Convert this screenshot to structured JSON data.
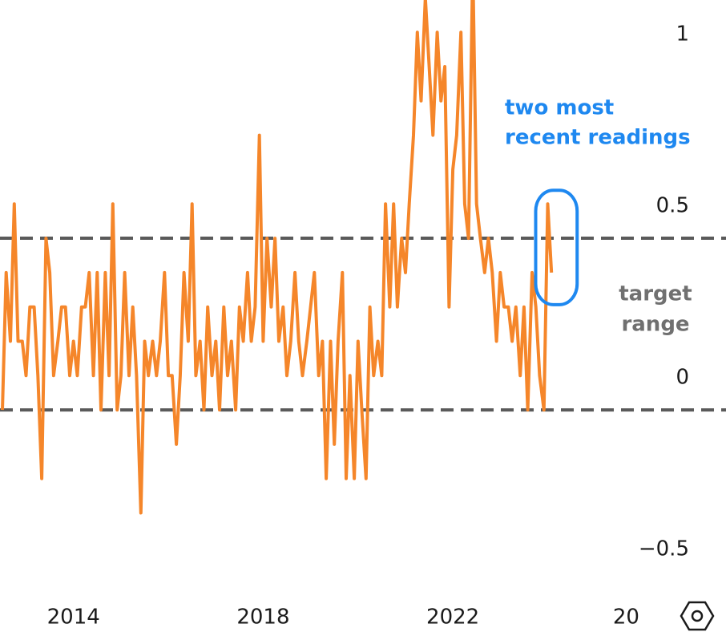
{
  "chart_data": {
    "type": "line",
    "x": [
      2012.5,
      2012.58,
      2012.67,
      2012.75,
      2012.83,
      2012.92,
      2013.0,
      2013.08,
      2013.17,
      2013.25,
      2013.33,
      2013.42,
      2013.5,
      2013.58,
      2013.67,
      2013.75,
      2013.83,
      2013.92,
      2014.0,
      2014.08,
      2014.17,
      2014.25,
      2014.33,
      2014.42,
      2014.5,
      2014.58,
      2014.67,
      2014.75,
      2014.83,
      2014.92,
      2015.0,
      2015.08,
      2015.17,
      2015.25,
      2015.33,
      2015.42,
      2015.5,
      2015.58,
      2015.67,
      2015.75,
      2015.83,
      2015.92,
      2016.0,
      2016.08,
      2016.17,
      2016.25,
      2016.33,
      2016.42,
      2016.5,
      2016.58,
      2016.67,
      2016.75,
      2016.83,
      2016.92,
      2017.0,
      2017.08,
      2017.17,
      2017.25,
      2017.33,
      2017.42,
      2017.5,
      2017.58,
      2017.67,
      2017.75,
      2017.83,
      2017.92,
      2018.0,
      2018.08,
      2018.17,
      2018.25,
      2018.33,
      2018.42,
      2018.5,
      2018.58,
      2018.67,
      2018.75,
      2018.83,
      2018.92,
      2019.0,
      2019.08,
      2019.17,
      2019.25,
      2019.33,
      2019.42,
      2019.5,
      2019.58,
      2019.67,
      2019.75,
      2019.83,
      2019.92,
      2020.0,
      2020.08,
      2020.17,
      2020.25,
      2020.33,
      2020.42,
      2020.5,
      2020.58,
      2020.67,
      2020.75,
      2020.83,
      2020.92,
      2021.0,
      2021.08,
      2021.17,
      2021.25,
      2021.33,
      2021.42,
      2021.5,
      2021.58,
      2021.67,
      2021.75,
      2021.83,
      2021.92,
      2022.0,
      2022.08,
      2022.17,
      2022.25,
      2022.33,
      2022.42,
      2022.5,
      2022.58,
      2022.67,
      2022.75,
      2022.83,
      2022.92,
      2023.0,
      2023.08,
      2023.17,
      2023.25,
      2023.33,
      2023.42,
      2023.5,
      2023.58,
      2023.67,
      2023.75,
      2023.83,
      2023.92,
      2024.0,
      2024.08
    ],
    "series": [
      {
        "color": "#f5862a",
        "values": [
          0,
          0.4,
          0.2,
          0.6,
          0.2,
          0.2,
          0.1,
          0.3,
          0.3,
          0.1,
          -0.2,
          0.5,
          0.4,
          0.1,
          0.2,
          0.3,
          0.3,
          0.1,
          0.2,
          0.1,
          0.3,
          0.3,
          0.4,
          0.1,
          0.4,
          0,
          0.4,
          0.1,
          0.6,
          0,
          0.1,
          0.4,
          0.1,
          0.3,
          0.1,
          -0.3,
          0.2,
          0.1,
          0.2,
          0.1,
          0.2,
          0.4,
          0.1,
          0.1,
          -0.1,
          0.1,
          0.4,
          0.2,
          0.6,
          0.1,
          0.2,
          0,
          0.3,
          0.1,
          0.2,
          0,
          0.3,
          0.1,
          0.2,
          0,
          0.3,
          0.2,
          0.4,
          0.2,
          0.3,
          0.8,
          0.2,
          0.5,
          0.3,
          0.5,
          0.2,
          0.3,
          0.1,
          0.2,
          0.4,
          0.2,
          0.1,
          0.2,
          0.3,
          0.4,
          0.1,
          0.2,
          -0.2,
          0.2,
          -0.1,
          0.2,
          0.4,
          -0.2,
          0.1,
          -0.2,
          0.2,
          0,
          -0.2,
          0.3,
          0.1,
          0.2,
          0.1,
          0.6,
          0.3,
          0.6,
          0.3,
          0.5,
          0.4,
          0.6,
          0.8,
          1.1,
          0.9,
          1.2,
          1.0,
          0.8,
          1.1,
          0.9,
          1.0,
          0.3,
          0.7,
          0.8,
          1.1,
          0.6,
          0.5,
          1.3,
          0.6,
          0.5,
          0.4,
          0.5,
          0.4,
          0.2,
          0.4,
          0.3,
          0.3,
          0.2,
          0.3,
          0.1,
          0.3,
          0,
          0.4,
          0.3,
          0.1,
          0,
          0.6,
          0.4
        ]
      }
    ],
    "xlim": [
      2012.45,
      2027.76
    ],
    "xticks": [
      2014,
      2018,
      2022,
      {
        "value": 2026,
        "label": "20"
      }
    ],
    "ylim": [
      -0.647,
      1.194
    ],
    "yticks": [
      1,
      {
        "value": 0.5,
        "label": "0.5"
      },
      0,
      {
        "value": -0.5,
        "label": "−0.5"
      }
    ],
    "target_range": [
      0,
      0.5
    ],
    "annotations": {
      "recent": [
        "two most",
        "recent readings"
      ],
      "target": [
        "target",
        "range"
      ]
    }
  }
}
